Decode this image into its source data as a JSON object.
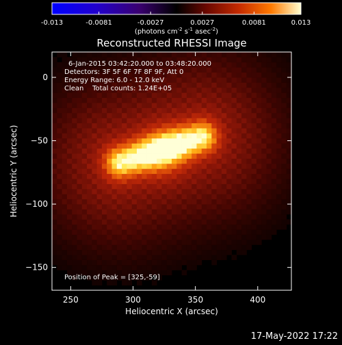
{
  "chart_data": {
    "type": "heatmap",
    "title": "Reconstructed RHESSI Image",
    "xlabel": "Heliocentric X (arcsec)",
    "ylabel": "Heliocentric Y (arcsec)",
    "xlim": [
      235,
      427
    ],
    "ylim": [
      -168,
      20
    ],
    "xticks": [
      250,
      300,
      350,
      400
    ],
    "yticks": [
      0,
      -50,
      -100,
      -150
    ],
    "annotations": {
      "time_range": "6-Jan-2015 03:42:20.000 to 03:48:20.000",
      "detectors": "Detectors: 3F 5F 6F 7F 8F 9F, Att 0",
      "energy_range": "Energy Range: 6.0 - 12.0 keV",
      "method_counts": "Clean    Total counts: 1.24E+05",
      "peak_position": "Position of Peak = [325,-59]"
    },
    "peak": {
      "x": 325,
      "y": -59
    },
    "source_core": {
      "x1": 290,
      "y1": -67,
      "x2": 355,
      "y2": -47,
      "peak_value": 0.013
    },
    "colorbar": {
      "min": -0.013,
      "max": 0.013,
      "tick_labels": [
        "-0.013",
        "-0.0081",
        "-0.0027",
        "0.0027",
        "0.0081",
        "0.013"
      ],
      "tick_values": [
        -0.013,
        -0.0081,
        -0.0027,
        0.0027,
        0.0081,
        0.013
      ],
      "label_main": "(photons cm",
      "label_exp1": "-2",
      "label_mid1": " s",
      "label_exp2": "-1",
      "label_mid2": " asec",
      "label_exp3": "-2",
      "label_end": ")",
      "colors": {
        "negative": [
          "#0000ff",
          "#2200dd",
          "#5000b0",
          "#300050",
          "#000000"
        ],
        "positive": [
          "#000000",
          "#5a0a00",
          "#b22200",
          "#ee5500",
          "#ffb000",
          "#ffffcc"
        ]
      }
    },
    "colors": {
      "background": "#000000",
      "foreground": "#ffffff"
    },
    "footer_timestamp": "17-May-2022 17:22"
  }
}
